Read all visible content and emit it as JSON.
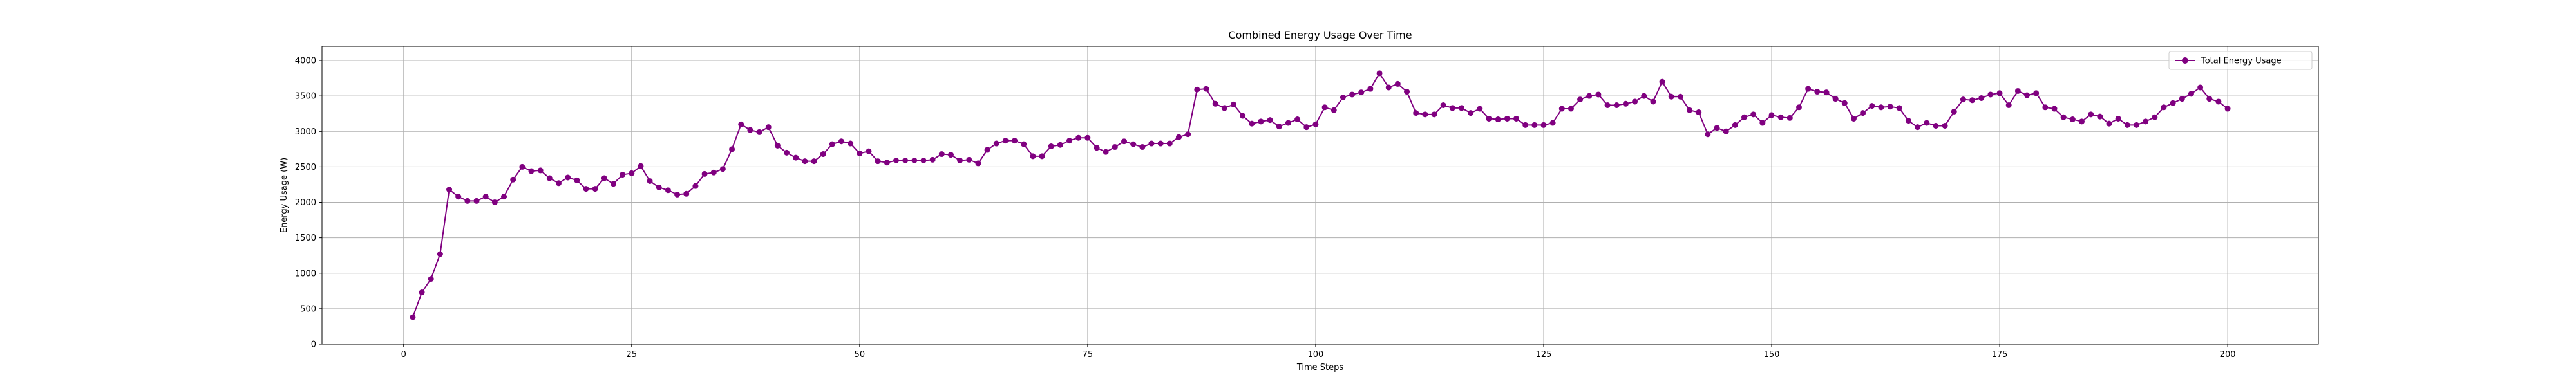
{
  "chart_data": {
    "type": "line",
    "title": "Combined Energy Usage Over Time",
    "xlabel": "Time Steps",
    "ylabel": "Energy Usage (W)",
    "xlim": [
      -8.95,
      209.95
    ],
    "ylim": [
      0,
      4200
    ],
    "xticks": [
      0,
      25,
      50,
      75,
      100,
      125,
      150,
      175,
      200
    ],
    "yticks": [
      0,
      500,
      1000,
      1500,
      2000,
      2500,
      3000,
      3500,
      4000
    ],
    "grid": true,
    "legend_position": "upper right",
    "series": [
      {
        "name": "Total Energy Usage",
        "color": "#800080",
        "marker": "circle",
        "x_start": 1,
        "x_step": 1,
        "values": [
          380,
          730,
          920,
          1270,
          2180,
          2080,
          2020,
          2020,
          2080,
          2000,
          2080,
          2320,
          2500,
          2440,
          2450,
          2340,
          2270,
          2350,
          2310,
          2190,
          2190,
          2340,
          2260,
          2390,
          2410,
          2510,
          2300,
          2210,
          2170,
          2110,
          2120,
          2230,
          2400,
          2420,
          2470,
          2750,
          3100,
          3020,
          2990,
          3060,
          2800,
          2700,
          2630,
          2580,
          2580,
          2680,
          2820,
          2860,
          2830,
          2690,
          2720,
          2580,
          2560,
          2590,
          2590,
          2590,
          2590,
          2600,
          2680,
          2670,
          2590,
          2600,
          2550,
          2740,
          2830,
          2870,
          2870,
          2820,
          2650,
          2650,
          2790,
          2810,
          2870,
          2910,
          2910,
          2770,
          2710,
          2780,
          2860,
          2820,
          2780,
          2830,
          2830,
          2830,
          2920,
          2960,
          3590,
          3600,
          3390,
          3330,
          3380,
          3220,
          3110,
          3140,
          3160,
          3070,
          3120,
          3170,
          3060,
          3100,
          3340,
          3300,
          3480,
          3520,
          3550,
          3600,
          3820,
          3620,
          3670,
          3560,
          3260,
          3240,
          3240,
          3370,
          3330,
          3330,
          3260,
          3320,
          3180,
          3170,
          3180,
          3180,
          3090,
          3090,
          3090,
          3120,
          3320,
          3320,
          3450,
          3500,
          3520,
          3370,
          3370,
          3390,
          3420,
          3500,
          3420,
          3700,
          3490,
          3490,
          3300,
          3270,
          2960,
          3050,
          3000,
          3090,
          3200,
          3240,
          3120,
          3230,
          3200,
          3190,
          3340,
          3600,
          3560,
          3550,
          3460,
          3400,
          3180,
          3260,
          3360,
          3340,
          3350,
          3330,
          3150,
          3060,
          3120,
          3080,
          3080,
          3280,
          3450,
          3440,
          3470,
          3520,
          3540,
          3370,
          3570,
          3510,
          3540,
          3340,
          3320,
          3200,
          3170,
          3140,
          3240,
          3210,
          3110,
          3180,
          3090,
          3090,
          3140,
          3200,
          3340,
          3400,
          3460,
          3530,
          3620,
          3460,
          3420,
          3320
        ]
      }
    ]
  }
}
